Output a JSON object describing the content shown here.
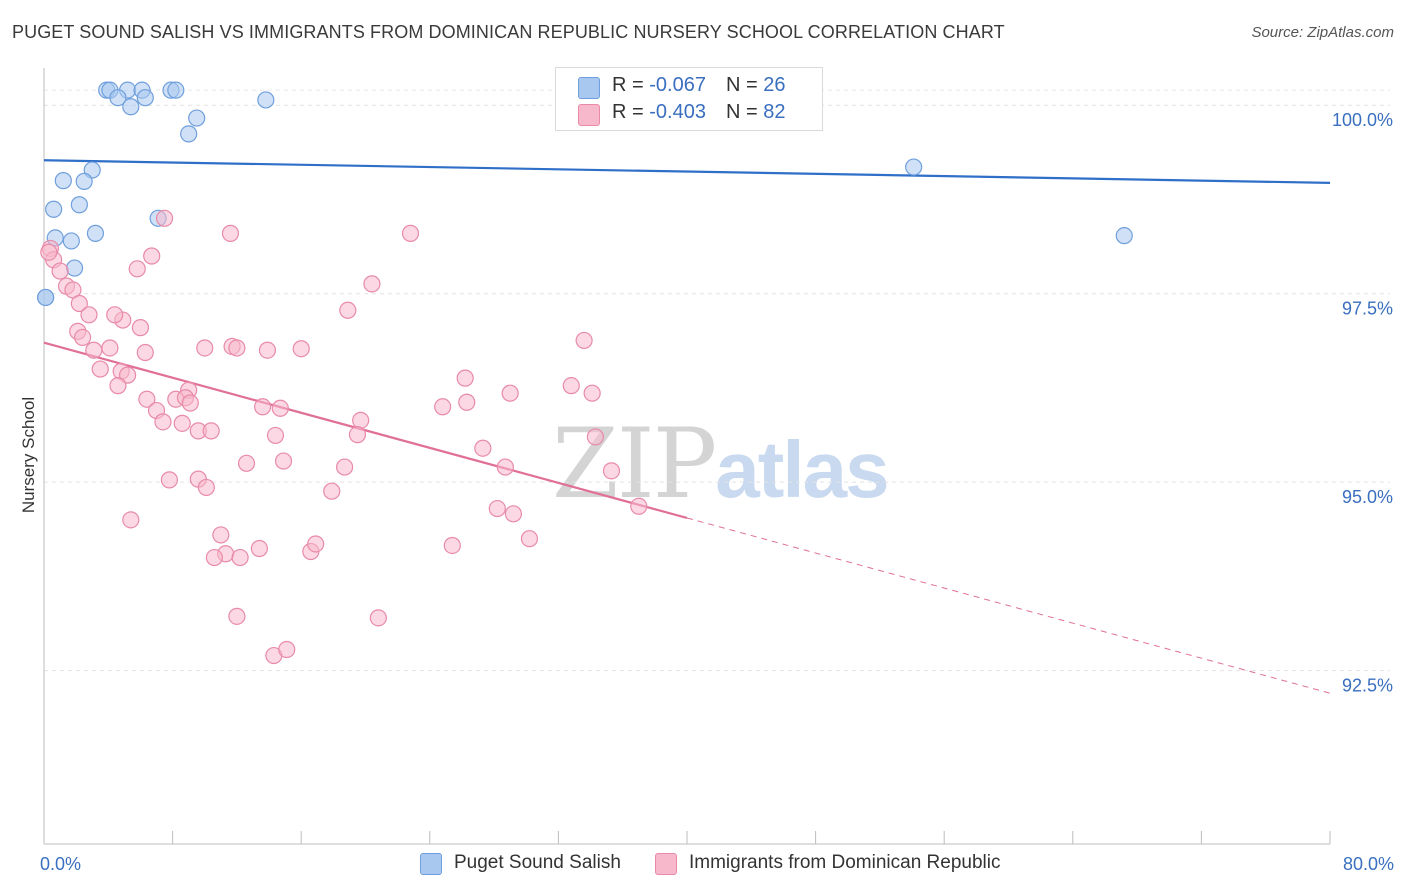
{
  "title": "PUGET SOUND SALISH VS IMMIGRANTS FROM DOMINICAN REPUBLIC NURSERY SCHOOL CORRELATION CHART",
  "source": "Source: ZipAtlas.com",
  "watermark": {
    "zip": "ZIP",
    "atlas": "atlas"
  },
  "legend_top": [
    {
      "r_label": "R = ",
      "r_value": "-0.067",
      "n_label": "N = ",
      "n_value": "26",
      "color": "#a9c8f0",
      "border": "#6f9fdc"
    },
    {
      "r_label": "R = ",
      "r_value": "-0.403",
      "n_label": "N = ",
      "n_value": "82",
      "color": "#f7b8cc",
      "border": "#e88aa8"
    }
  ],
  "legend_bottom": [
    {
      "label": "Puget Sound Salish",
      "color": "#a9c8f0",
      "border": "#6f9fdc"
    },
    {
      "label": "Immigrants from Dominican Republic",
      "color": "#f7b8cc",
      "border": "#e88aa8"
    }
  ],
  "chart_data": {
    "type": "scatter",
    "title": "PUGET SOUND SALISH VS IMMIGRANTS FROM DOMINICAN REPUBLIC NURSERY SCHOOL CORRELATION CHART",
    "xlabel": "",
    "ylabel": "Nursery School",
    "xlim": [
      0,
      80
    ],
    "ylim": [
      90.2,
      100.6
    ],
    "x_ticks": [
      0,
      8,
      16,
      24,
      32,
      40,
      48,
      56,
      64,
      72,
      80
    ],
    "x_tick_labels": [
      {
        "value": 0,
        "label": "0.0%"
      },
      {
        "value": 80,
        "label": "80.0%"
      }
    ],
    "y_ticks": [
      {
        "value": 100,
        "label": "100.0%"
      },
      {
        "value": 97.5,
        "label": "97.5%"
      },
      {
        "value": 95,
        "label": "95.0%"
      },
      {
        "value": 92.5,
        "label": "92.5%"
      }
    ],
    "grid": true,
    "series": [
      {
        "name": "Puget Sound Salish",
        "color": "#a9c8f0",
        "stroke": "#6f9fdc",
        "trend": {
          "x0": 0,
          "y0": 99.27,
          "x1": 80,
          "y1": 98.97,
          "color": "#2f6fc8",
          "dashed_from": null
        },
        "points": [
          [
            3.9,
            100.2
          ],
          [
            4.1,
            100.2
          ],
          [
            5.2,
            100.2
          ],
          [
            6.1,
            100.2
          ],
          [
            7.9,
            100.2
          ],
          [
            8.2,
            100.2
          ],
          [
            4.6,
            100.1
          ],
          [
            5.4,
            99.98
          ],
          [
            6.3,
            100.1
          ],
          [
            13.8,
            100.07
          ],
          [
            9.5,
            99.83
          ],
          [
            9.0,
            99.62
          ],
          [
            3.0,
            99.14
          ],
          [
            1.2,
            99.0
          ],
          [
            2.5,
            98.99
          ],
          [
            2.2,
            98.68
          ],
          [
            0.6,
            98.62
          ],
          [
            7.1,
            98.5
          ],
          [
            3.2,
            98.3
          ],
          [
            1.7,
            98.2
          ],
          [
            0.7,
            98.24
          ],
          [
            1.9,
            97.84
          ],
          [
            0.1,
            97.45
          ],
          [
            54.1,
            99.18
          ],
          [
            67.2,
            98.27
          ],
          [
            0.1,
            97.45
          ]
        ]
      },
      {
        "name": "Immigrants from Dominican Republic",
        "color": "#f7b8cc",
        "stroke": "#e88aa8",
        "trend": {
          "x0": 0,
          "y0": 96.85,
          "x1": 80,
          "y1": 92.2,
          "color": "#e07098",
          "dashed_from": 40
        },
        "points": [
          [
            0.4,
            98.1
          ],
          [
            0.6,
            97.95
          ],
          [
            1.0,
            97.8
          ],
          [
            1.4,
            97.6
          ],
          [
            1.8,
            97.55
          ],
          [
            2.2,
            97.37
          ],
          [
            7.5,
            98.5
          ],
          [
            11.6,
            98.3
          ],
          [
            22.8,
            98.3
          ],
          [
            6.7,
            98.0
          ],
          [
            5.8,
            97.83
          ],
          [
            20.4,
            97.63
          ],
          [
            18.9,
            97.28
          ],
          [
            2.8,
            97.22
          ],
          [
            4.9,
            97.15
          ],
          [
            4.4,
            97.22
          ],
          [
            2.1,
            97.0
          ],
          [
            6.0,
            97.05
          ],
          [
            2.4,
            96.92
          ],
          [
            3.1,
            96.75
          ],
          [
            4.1,
            96.78
          ],
          [
            6.3,
            96.72
          ],
          [
            10.0,
            96.78
          ],
          [
            11.7,
            96.8
          ],
          [
            12.0,
            96.78
          ],
          [
            13.9,
            96.75
          ],
          [
            16.0,
            96.77
          ],
          [
            33.6,
            96.88
          ],
          [
            3.5,
            96.5
          ],
          [
            4.8,
            96.47
          ],
          [
            5.2,
            96.42
          ],
          [
            26.2,
            96.38
          ],
          [
            4.6,
            96.28
          ],
          [
            9.0,
            96.22
          ],
          [
            6.4,
            96.1
          ],
          [
            8.2,
            96.1
          ],
          [
            8.8,
            96.12
          ],
          [
            9.1,
            96.05
          ],
          [
            7.0,
            95.95
          ],
          [
            13.6,
            96.0
          ],
          [
            14.7,
            95.98
          ],
          [
            24.8,
            96.0
          ],
          [
            26.3,
            96.06
          ],
          [
            34.1,
            96.18
          ],
          [
            29.0,
            96.18
          ],
          [
            32.8,
            96.28
          ],
          [
            7.4,
            95.8
          ],
          [
            8.6,
            95.78
          ],
          [
            19.7,
            95.82
          ],
          [
            9.6,
            95.68
          ],
          [
            10.4,
            95.68
          ],
          [
            19.5,
            95.63
          ],
          [
            14.4,
            95.62
          ],
          [
            27.3,
            95.45
          ],
          [
            34.3,
            95.6
          ],
          [
            12.6,
            95.25
          ],
          [
            14.9,
            95.28
          ],
          [
            18.7,
            95.2
          ],
          [
            28.7,
            95.2
          ],
          [
            35.3,
            95.15
          ],
          [
            7.8,
            95.03
          ],
          [
            9.6,
            95.04
          ],
          [
            10.1,
            94.93
          ],
          [
            17.9,
            94.88
          ],
          [
            28.2,
            94.65
          ],
          [
            29.2,
            94.58
          ],
          [
            37.0,
            94.68
          ],
          [
            5.4,
            94.5
          ],
          [
            11.0,
            94.3
          ],
          [
            11.3,
            94.05
          ],
          [
            10.6,
            94.0
          ],
          [
            12.2,
            94.0
          ],
          [
            13.4,
            94.12
          ],
          [
            16.6,
            94.08
          ],
          [
            16.9,
            94.18
          ],
          [
            25.4,
            94.16
          ],
          [
            30.2,
            94.25
          ],
          [
            12.0,
            93.22
          ],
          [
            20.8,
            93.2
          ],
          [
            14.3,
            92.7
          ],
          [
            15.1,
            92.78
          ],
          [
            0.3,
            98.05
          ]
        ]
      }
    ]
  }
}
